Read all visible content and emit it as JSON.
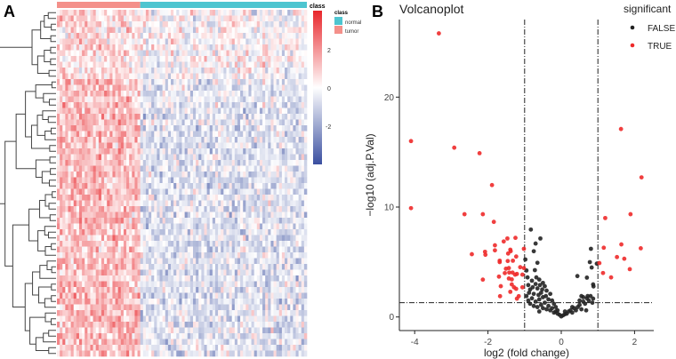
{
  "chart_data": [
    {
      "type": "heatmap",
      "panel_label": "A",
      "rows": 60,
      "columns": {
        "tumor": 30,
        "normal": 60
      },
      "row_groups": [
        {
          "rows": 12,
          "tumor_mean": 0.6,
          "normal_mean": 0.0
        },
        {
          "rows": 48,
          "tumor_mean": 1.2,
          "normal_mean": -0.6
        }
      ],
      "color_scale": {
        "min": -4,
        "max": 4,
        "low": "#3A4FA0",
        "mid": "#FFFFFF",
        "high": "#E8262B",
        "ticks": [
          "2",
          "0",
          "-2"
        ]
      },
      "annotation": {
        "title": "class",
        "bar_label": "class",
        "legend": [
          {
            "label": "normal",
            "color": "#4EC5D0"
          },
          {
            "label": "tumor",
            "color": "#F4908A"
          }
        ]
      }
    },
    {
      "type": "scatter",
      "panel_label": "B",
      "title": "Volcanoplot",
      "xlabel": "log2 (fold change)",
      "ylabel": "−log10 (adj.P.Val)",
      "xlim": [
        -4.2,
        2.5
      ],
      "ylim": [
        -1.2,
        27
      ],
      "xticks": [
        "-4",
        "-2",
        "0",
        "2"
      ],
      "xtick_values": [
        -4,
        -2,
        0,
        2
      ],
      "yticks": [
        "0",
        "10",
        "20"
      ],
      "ytick_values": [
        0,
        10,
        20
      ],
      "thresholds": {
        "log2fc": [
          -1,
          1
        ],
        "neglog10p": 1.3
      },
      "legend": {
        "title": "significant",
        "entries": [
          {
            "label": "FALSE",
            "color": "#222222"
          },
          {
            "label": "TRUE",
            "color": "#EE2A2A"
          }
        ]
      },
      "series": [
        {
          "name": "TRUE",
          "points": [
            [
              -3.34,
              25.8
            ],
            [
              -4.1,
              16.0
            ],
            [
              -2.92,
              15.4
            ],
            [
              -2.23,
              14.9
            ],
            [
              -1.89,
              12.0
            ],
            [
              -4.1,
              9.9
            ],
            [
              -2.64,
              9.35
            ],
            [
              -2.14,
              9.35
            ],
            [
              -1.84,
              8.65
            ],
            [
              1.63,
              17.1
            ],
            [
              2.19,
              12.7
            ],
            [
              1.89,
              9.35
            ],
            [
              1.2,
              9.0
            ],
            [
              1.16,
              6.3
            ],
            [
              1.64,
              6.6
            ],
            [
              2.17,
              6.25
            ],
            [
              1.52,
              5.45
            ],
            [
              1.72,
              5.3
            ],
            [
              1.04,
              4.9
            ],
            [
              1.87,
              4.35
            ],
            [
              1.14,
              4.0
            ],
            [
              1.36,
              3.6
            ],
            [
              -2.44,
              5.71
            ],
            [
              -2.08,
              5.93
            ],
            [
              -2.07,
              5.66
            ],
            [
              -1.81,
              6.52
            ],
            [
              -1.81,
              6.06
            ],
            [
              -1.57,
              6.87
            ],
            [
              -1.47,
              7.14
            ],
            [
              -1.25,
              7.2
            ],
            [
              -1.39,
              6.12
            ],
            [
              -1.38,
              5.98
            ],
            [
              -1.45,
              5.77
            ],
            [
              -1.23,
              5.5
            ],
            [
              -1.68,
              5.12
            ],
            [
              -1.68,
              4.99
            ],
            [
              -1.46,
              5.09
            ],
            [
              -1.32,
              5.12
            ],
            [
              -1.51,
              4.39
            ],
            [
              -1.43,
              4.45
            ],
            [
              -1.42,
              4.04
            ],
            [
              -1.54,
              3.99
            ],
            [
              -1.33,
              4.04
            ],
            [
              -1.26,
              3.85
            ],
            [
              -1.21,
              3.91
            ],
            [
              -1.12,
              4.53
            ],
            [
              -1.02,
              4.45
            ],
            [
              -1.7,
              3.67
            ],
            [
              -2.14,
              3.4
            ],
            [
              -1.43,
              3.5
            ],
            [
              -1.35,
              3.42
            ],
            [
              -1.06,
              3.85
            ],
            [
              -1.65,
              2.8
            ],
            [
              -1.35,
              2.96
            ],
            [
              -1.29,
              2.7
            ],
            [
              -1.23,
              2.56
            ],
            [
              -1.39,
              2.29
            ],
            [
              -1.06,
              2.7
            ],
            [
              -1.67,
              1.89
            ],
            [
              -1.21,
              1.67
            ],
            [
              -1.16,
              1.89
            ],
            [
              -1.02,
              6.2
            ]
          ]
        },
        {
          "name": "FALSE",
          "points": [
            [
              -0.83,
              7.95
            ],
            [
              -0.57,
              7.14
            ],
            [
              -0.7,
              6.68
            ],
            [
              -0.75,
              5.98
            ],
            [
              -0.98,
              5.23
            ],
            [
              -0.65,
              4.93
            ],
            [
              -0.95,
              4.23
            ],
            [
              -0.72,
              4.26
            ],
            [
              0.81,
              6.2
            ],
            [
              0.78,
              4.99
            ],
            [
              0.97,
              4.85
            ],
            [
              0.83,
              4.5
            ],
            [
              0.44,
              3.72
            ],
            [
              0.7,
              3.58
            ],
            [
              0.87,
              2.96
            ],
            [
              0.88,
              2.78
            ],
            [
              0.87,
              1.67
            ],
            [
              -0.9,
              2.9
            ],
            [
              -0.85,
              2.5
            ],
            [
              -0.8,
              3.3
            ],
            [
              -0.75,
              2.1
            ],
            [
              -0.7,
              3.0
            ],
            [
              -0.65,
              2.6
            ],
            [
              -0.6,
              3.4
            ],
            [
              -0.55,
              2.2
            ],
            [
              -0.5,
              3.1
            ],
            [
              -0.45,
              2.8
            ],
            [
              -0.42,
              1.9
            ],
            [
              -0.4,
              2.4
            ],
            [
              -0.95,
              1.9
            ],
            [
              -0.9,
              1.5
            ],
            [
              -0.85,
              1.2
            ],
            [
              -0.8,
              1.7
            ],
            [
              -0.75,
              1.0
            ],
            [
              -0.7,
              1.4
            ],
            [
              -0.65,
              0.9
            ],
            [
              -0.6,
              1.6
            ],
            [
              -0.55,
              1.1
            ],
            [
              -0.5,
              0.8
            ],
            [
              -0.45,
              1.3
            ],
            [
              -0.4,
              0.7
            ],
            [
              -0.35,
              1.0
            ],
            [
              -0.3,
              0.6
            ],
            [
              -0.25,
              0.8
            ],
            [
              -0.2,
              0.4
            ],
            [
              -0.15,
              0.5
            ],
            [
              -0.1,
              0.3
            ],
            [
              -0.05,
              0.2
            ],
            [
              0,
              0.05
            ],
            [
              0.05,
              0.15
            ],
            [
              0.1,
              0.25
            ],
            [
              0.15,
              0.3
            ],
            [
              0.2,
              0.5
            ],
            [
              0.25,
              0.6
            ],
            [
              0.3,
              0.4
            ],
            [
              0.35,
              0.8
            ],
            [
              0.4,
              0.6
            ],
            [
              0.45,
              0.9
            ],
            [
              0.5,
              1.1
            ],
            [
              0.55,
              0.7
            ],
            [
              0.6,
              1.4
            ],
            [
              0.65,
              1.2
            ],
            [
              0.7,
              1.7
            ],
            [
              0.75,
              1.5
            ],
            [
              0.8,
              1.9
            ],
            [
              0.85,
              1.3
            ],
            [
              0.55,
              1.9
            ],
            [
              0.6,
              1.8
            ],
            [
              0.68,
              0.6
            ],
            [
              -0.35,
              1.6
            ],
            [
              -0.3,
              2.1
            ],
            [
              -0.2,
              1.2
            ],
            [
              -0.25,
              1.5
            ],
            [
              -0.5,
              1.8
            ],
            [
              -0.6,
              0.5
            ],
            [
              -0.88,
              2.2
            ],
            [
              -0.78,
              2.7
            ],
            [
              -0.62,
              2.0
            ],
            [
              -0.52,
              2.5
            ],
            [
              -0.92,
              3.6
            ],
            [
              -0.68,
              3.6
            ],
            [
              -0.58,
              2.9
            ],
            [
              -0.1,
              0.6
            ],
            [
              0.1,
              0.5
            ],
            [
              0.3,
              0.9
            ],
            [
              0.72,
              1.9
            ],
            [
              0.5,
              1.5
            ],
            [
              -0.15,
              0.9
            ]
          ]
        }
      ]
    }
  ]
}
